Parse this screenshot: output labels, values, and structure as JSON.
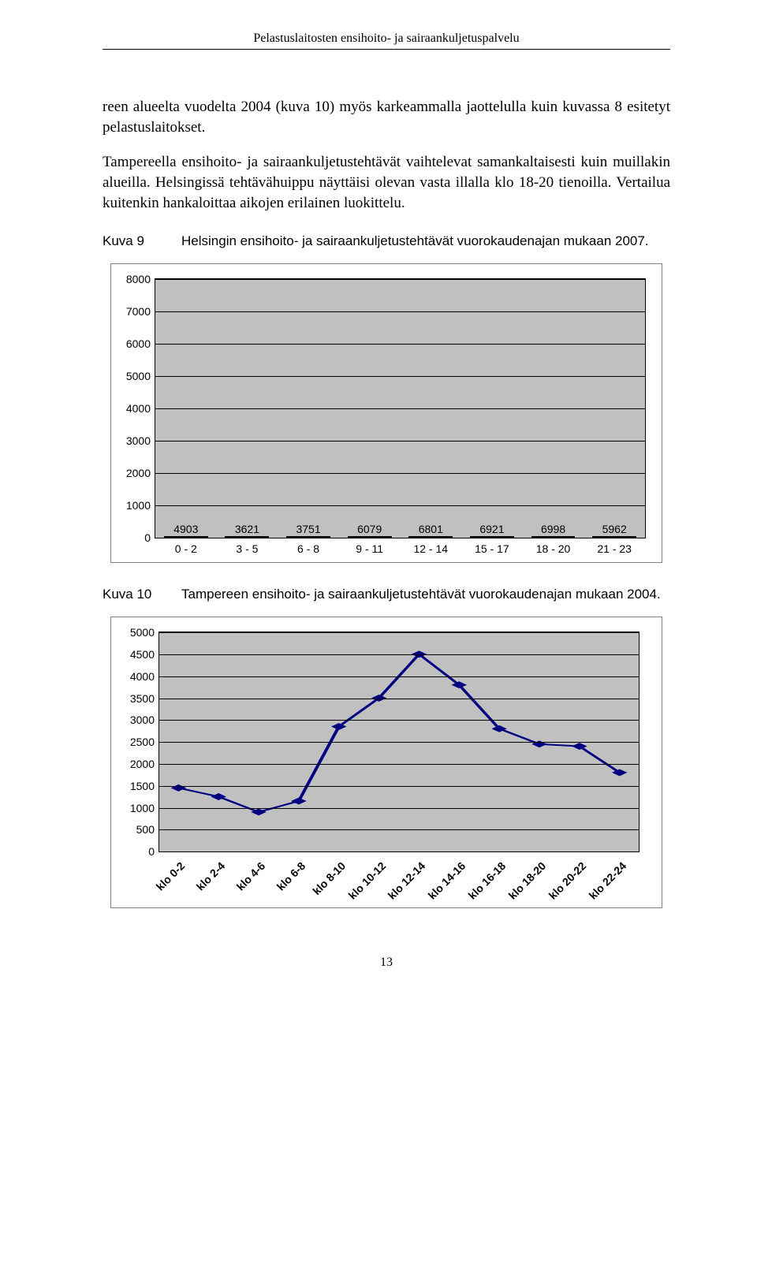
{
  "running_head": "Pelastuslaitosten ensihoito- ja sairaankuljetuspalvelu",
  "para1": "reen alueelta vuodelta 2004 (kuva 10) myös karkeammalla jaottelulla kuin kuvassa 8 esitetyt pelastuslaitokset.",
  "para2": "Tampereella ensihoito- ja sairaankuljetustehtävät vaihtelevat samankaltaisesti kuin muillakin alueilla. Helsingissä tehtävähuippu näyttäisi olevan vasta illalla klo 18-20 tienoilla. Vertailua kuitenkin hankaloittaa aikojen erilainen luokittelu.",
  "figure9": {
    "ref": "Kuva 9",
    "caption": "Helsingin ensihoito- ja sairaankuljetustehtävät vuorokaudenajan mukaan 2007."
  },
  "bar_chart": {
    "ymax": 8000,
    "ytick_step": 1000,
    "bar_color": "#4a7ebb",
    "bg_color": "#c0c0c0",
    "categories": [
      "0 - 2",
      "3 - 5",
      "6 - 8",
      "9 - 11",
      "12 - 14",
      "15 - 17",
      "18 - 20",
      "21 - 23"
    ],
    "values": [
      4903,
      3621,
      3751,
      6079,
      6801,
      6921,
      6998,
      5962
    ]
  },
  "figure10": {
    "ref": "Kuva 10",
    "caption": "Tampereen ensihoito- ja sairaankuljetustehtävät vuorokaudenajan mukaan 2004."
  },
  "line_chart": {
    "ymax": 5000,
    "ytick_step": 500,
    "bg_color": "#c0c0c0",
    "line_color": "#000080",
    "marker_color": "#000080",
    "categories": [
      "klo 0-2",
      "klo 2-4",
      "klo 4-6",
      "klo 6-8",
      "klo 8-10",
      "klo 10-12",
      "klo 12-14",
      "klo 14-16",
      "klo 16-18",
      "klo 18-20",
      "klo 20-22",
      "klo 22-24"
    ],
    "values": [
      1450,
      1250,
      900,
      1150,
      2850,
      3500,
      4500,
      3800,
      2800,
      2450,
      2400,
      1800
    ]
  },
  "page_number": "13"
}
